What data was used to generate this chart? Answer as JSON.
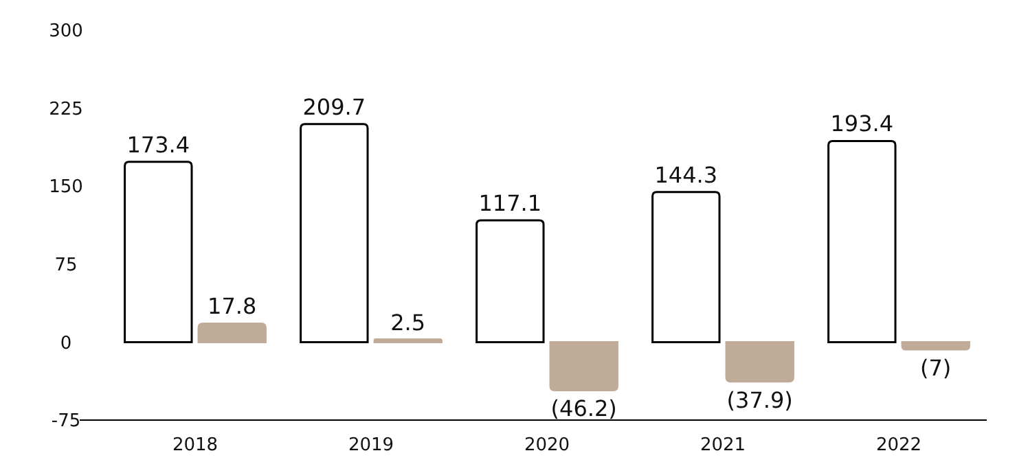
{
  "chart_data": {
    "type": "bar",
    "categories": [
      "2018",
      "2019",
      "2020",
      "2021",
      "2022"
    ],
    "series": [
      {
        "color": "#ffffff",
        "values": [
          173.4,
          209.7,
          117.1,
          144.3,
          193.4
        ],
        "value_labels": [
          "173.4",
          "209.7",
          "117.1",
          "144.3",
          "193.4"
        ]
      },
      {
        "color": "#bfab98",
        "values": [
          17.8,
          2.5,
          -46.2,
          -37.9,
          -7
        ],
        "value_labels": [
          "17.8",
          "2.5",
          "(46.2)",
          "(37.9)",
          "(7)"
        ]
      }
    ],
    "ylim": [
      -75,
      300
    ],
    "yticks": [
      300,
      225,
      150,
      75,
      0,
      -75
    ],
    "grid": false
  }
}
